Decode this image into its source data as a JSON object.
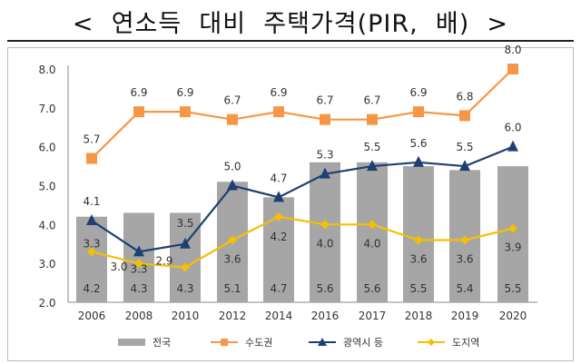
{
  "title": "<  연소득  대비  주택가격(PIR,  배)  >",
  "chart_data": {
    "type": "bar+line",
    "categories": [
      "2006",
      "2008",
      "2010",
      "2012",
      "2014",
      "2016",
      "2017",
      "2018",
      "2019",
      "2020"
    ],
    "ylim": [
      2.0,
      8.0
    ],
    "yticks": [
      "2.0",
      "3.0",
      "4.0",
      "5.0",
      "6.0",
      "7.0",
      "8.0"
    ],
    "grid": false,
    "legend": "bottom",
    "series": [
      {
        "name": "전국",
        "type": "bar",
        "color": "#a6a6a6",
        "values": [
          4.2,
          4.3,
          4.3,
          5.1,
          4.7,
          5.6,
          5.6,
          5.5,
          5.4,
          5.5
        ]
      },
      {
        "name": "수도권",
        "type": "line",
        "marker": "square",
        "color": "#f79646",
        "values": [
          5.7,
          6.9,
          6.9,
          6.7,
          6.9,
          6.7,
          6.7,
          6.9,
          6.8,
          8.0
        ]
      },
      {
        "name": "광역시 등",
        "type": "line",
        "marker": "triangle",
        "color": "#1f3f73",
        "values": [
          4.1,
          3.3,
          3.5,
          5.0,
          4.7,
          5.3,
          5.5,
          5.6,
          5.5,
          6.0
        ]
      },
      {
        "name": "도지역",
        "type": "line",
        "marker": "diamond",
        "color": "#f5c000",
        "values": [
          3.3,
          3.0,
          2.9,
          3.6,
          4.2,
          4.0,
          4.0,
          3.6,
          3.6,
          3.9
        ]
      }
    ]
  }
}
